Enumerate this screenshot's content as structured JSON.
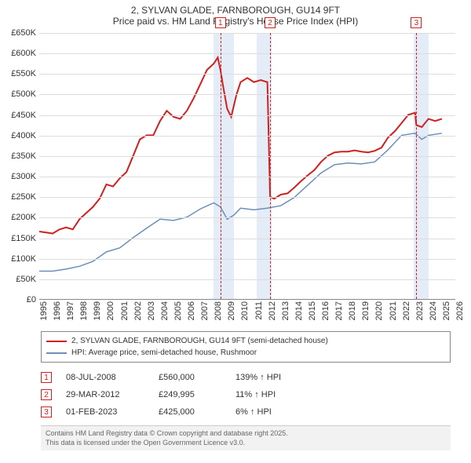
{
  "title": {
    "line1": "2, SYLVAN GLADE, FARNBOROUGH, GU14 9FT",
    "line2": "Price paid vs. HM Land Registry's House Price Index (HPI)"
  },
  "chart": {
    "type": "line",
    "background_color": "#ffffff",
    "grid_color": "#dddddd",
    "xlim": [
      1995,
      2026
    ],
    "ylim": [
      0,
      650000
    ],
    "ytick_step": 50000,
    "ytick_format": "£{K}K",
    "y_labels": [
      "£0",
      "£50K",
      "£100K",
      "£150K",
      "£200K",
      "£250K",
      "£300K",
      "£350K",
      "£400K",
      "£450K",
      "£500K",
      "£550K",
      "£600K",
      "£650K"
    ],
    "x_ticks": [
      1995,
      1996,
      1997,
      1998,
      1999,
      2000,
      2001,
      2002,
      2003,
      2004,
      2005,
      2006,
      2007,
      2008,
      2009,
      2010,
      2011,
      2012,
      2013,
      2014,
      2015,
      2016,
      2017,
      2018,
      2019,
      2020,
      2021,
      2022,
      2023,
      2024,
      2025,
      2026
    ],
    "shade_bands": [
      {
        "x_start": 2008.0,
        "x_end": 2009.5,
        "color": "#e4edf7"
      },
      {
        "x_start": 2011.2,
        "x_end": 2012.3,
        "color": "#e4edf7"
      },
      {
        "x_start": 2022.9,
        "x_end": 2024.0,
        "color": "#e4edf7"
      }
    ],
    "markers": [
      {
        "n": "1",
        "x": 2008.5,
        "y_top": -20
      },
      {
        "n": "2",
        "x": 2012.2,
        "y_top": -20
      },
      {
        "n": "3",
        "x": 2023.1,
        "y_top": -20
      }
    ],
    "series": [
      {
        "name": "price",
        "label": "2, SYLVAN GLADE, FARNBOROUGH, GU14 9FT (semi-detached house)",
        "color": "#d02020",
        "line_width": 2,
        "points": [
          [
            1995,
            165000
          ],
          [
            1996,
            160000
          ],
          [
            1996.5,
            170000
          ],
          [
            1997,
            175000
          ],
          [
            1997.5,
            170000
          ],
          [
            1998,
            195000
          ],
          [
            1998.5,
            210000
          ],
          [
            1999,
            225000
          ],
          [
            1999.5,
            245000
          ],
          [
            2000,
            280000
          ],
          [
            2000.5,
            275000
          ],
          [
            2001,
            295000
          ],
          [
            2001.5,
            310000
          ],
          [
            2002,
            350000
          ],
          [
            2002.5,
            390000
          ],
          [
            2003,
            400000
          ],
          [
            2003.5,
            400000
          ],
          [
            2004,
            435000
          ],
          [
            2004.5,
            460000
          ],
          [
            2005,
            445000
          ],
          [
            2005.5,
            440000
          ],
          [
            2006,
            460000
          ],
          [
            2006.5,
            490000
          ],
          [
            2007,
            525000
          ],
          [
            2007.5,
            560000
          ],
          [
            2008,
            575000
          ],
          [
            2008.3,
            590000
          ],
          [
            2008.5,
            560000
          ],
          [
            2008.7,
            520000
          ],
          [
            2009,
            465000
          ],
          [
            2009.3,
            445000
          ],
          [
            2009.7,
            500000
          ],
          [
            2010,
            530000
          ],
          [
            2010.5,
            540000
          ],
          [
            2011,
            530000
          ],
          [
            2011.5,
            535000
          ],
          [
            2012,
            530000
          ],
          [
            2012.2,
            249995
          ],
          [
            2012.5,
            245000
          ],
          [
            2013,
            255000
          ],
          [
            2013.5,
            258000
          ],
          [
            2014,
            272000
          ],
          [
            2014.5,
            288000
          ],
          [
            2015,
            302000
          ],
          [
            2015.5,
            315000
          ],
          [
            2016,
            335000
          ],
          [
            2016.5,
            350000
          ],
          [
            2017,
            358000
          ],
          [
            2017.5,
            360000
          ],
          [
            2018,
            360000
          ],
          [
            2018.5,
            363000
          ],
          [
            2019,
            360000
          ],
          [
            2019.5,
            358000
          ],
          [
            2020,
            362000
          ],
          [
            2020.5,
            370000
          ],
          [
            2021,
            395000
          ],
          [
            2021.5,
            410000
          ],
          [
            2022,
            430000
          ],
          [
            2022.5,
            450000
          ],
          [
            2023,
            455000
          ],
          [
            2023.1,
            425000
          ],
          [
            2023.5,
            420000
          ],
          [
            2024,
            440000
          ],
          [
            2024.5,
            435000
          ],
          [
            2025,
            440000
          ]
        ]
      },
      {
        "name": "hpi",
        "label": "HPI: Average price, semi-detached house, Rushmoor",
        "color": "#6b8fb8",
        "line_width": 1.5,
        "points": [
          [
            1995,
            68000
          ],
          [
            1996,
            68000
          ],
          [
            1997,
            73000
          ],
          [
            1998,
            80000
          ],
          [
            1999,
            92000
          ],
          [
            2000,
            115000
          ],
          [
            2001,
            125000
          ],
          [
            2002,
            150000
          ],
          [
            2003,
            173000
          ],
          [
            2004,
            195000
          ],
          [
            2005,
            192000
          ],
          [
            2006,
            200000
          ],
          [
            2007,
            220000
          ],
          [
            2008,
            235000
          ],
          [
            2008.5,
            225000
          ],
          [
            2009,
            195000
          ],
          [
            2009.5,
            205000
          ],
          [
            2010,
            222000
          ],
          [
            2011,
            218000
          ],
          [
            2012,
            222000
          ],
          [
            2013,
            228000
          ],
          [
            2014,
            248000
          ],
          [
            2015,
            278000
          ],
          [
            2016,
            308000
          ],
          [
            2017,
            328000
          ],
          [
            2018,
            332000
          ],
          [
            2019,
            330000
          ],
          [
            2020,
            335000
          ],
          [
            2021,
            365000
          ],
          [
            2022,
            400000
          ],
          [
            2023,
            405000
          ],
          [
            2023.5,
            390000
          ],
          [
            2024,
            400000
          ],
          [
            2025,
            405000
          ]
        ]
      }
    ]
  },
  "legend": {
    "border_color": "#888888",
    "items": [
      {
        "color": "#d02020",
        "label": "2, SYLVAN GLADE, FARNBOROUGH, GU14 9FT (semi-detached house)"
      },
      {
        "color": "#6b8fb8",
        "label": "HPI: Average price, semi-detached house, Rushmoor"
      }
    ]
  },
  "events": [
    {
      "n": "1",
      "date": "08-JUL-2008",
      "price": "£560,000",
      "change": "139% ↑ HPI"
    },
    {
      "n": "2",
      "date": "29-MAR-2012",
      "price": "£249,995",
      "change": "11% ↑ HPI"
    },
    {
      "n": "3",
      "date": "01-FEB-2023",
      "price": "£425,000",
      "change": "6% ↑ HPI"
    }
  ],
  "footnote": {
    "line1": "Contains HM Land Registry data © Crown copyright and database right 2025.",
    "line2": "This data is licensed under the Open Government Licence v3.0."
  }
}
